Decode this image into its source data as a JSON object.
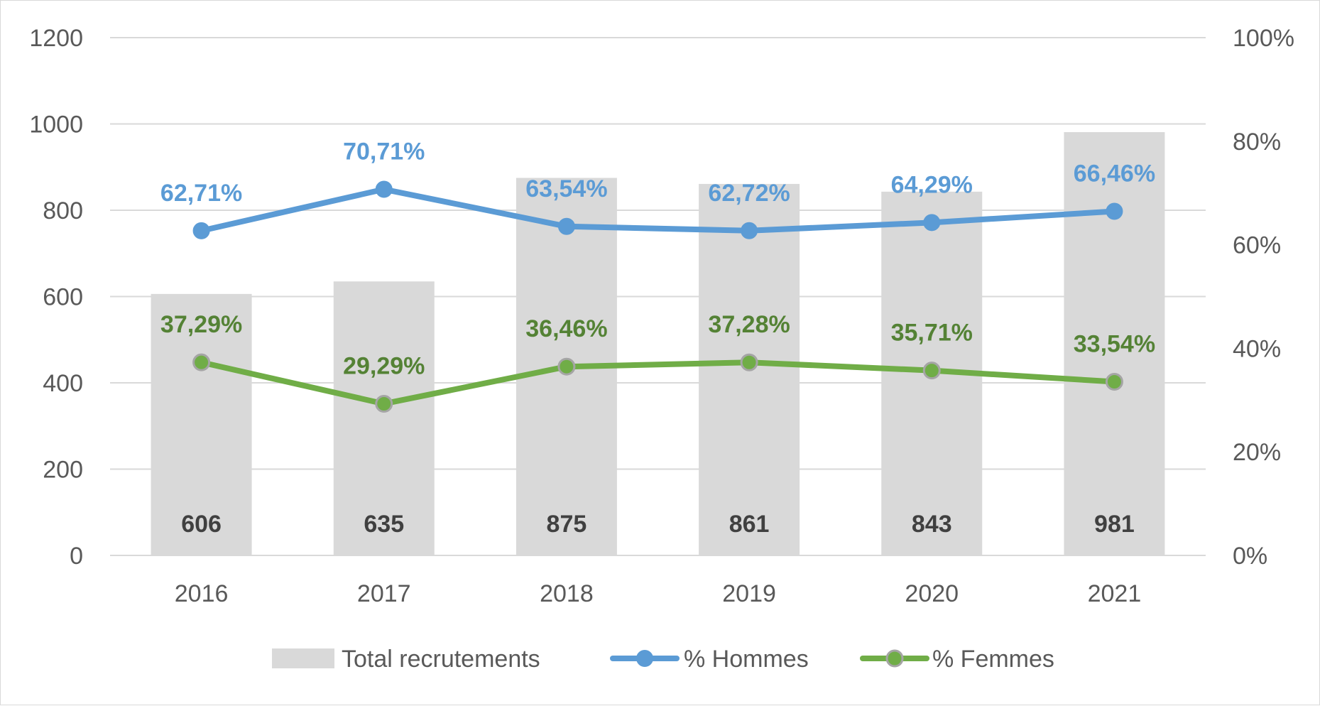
{
  "chart_data": {
    "type": "bar",
    "categories": [
      "2016",
      "2017",
      "2018",
      "2019",
      "2020",
      "2021"
    ],
    "bars": {
      "name": "Total recrutements",
      "values": [
        606,
        635,
        875,
        861,
        843,
        981
      ],
      "labels": [
        "606",
        "635",
        "875",
        "861",
        "843",
        "981"
      ],
      "color": "#d9d9d9"
    },
    "series": [
      {
        "name": "% Hommes",
        "axis": "right",
        "type": "line",
        "values": [
          62.71,
          70.71,
          63.54,
          62.72,
          64.29,
          66.46
        ],
        "labels": [
          "62,71%",
          "70,71%",
          "63,54%",
          "62,72%",
          "64,29%",
          "66,46%"
        ],
        "color": "#5b9bd5",
        "marker_fill": "#5b9bd5"
      },
      {
        "name": "% Femmes",
        "axis": "right",
        "type": "line",
        "values": [
          37.29,
          29.29,
          36.46,
          37.28,
          35.71,
          33.54
        ],
        "labels": [
          "37,29%",
          "29,29%",
          "36,46%",
          "37,28%",
          "35,71%",
          "33,54%"
        ],
        "color": "#70ad47",
        "marker_fill": "#70ad47",
        "marker_stroke": "#a5a5a5",
        "label_color": "#548235"
      }
    ],
    "y_left": {
      "ylim": [
        0,
        1200
      ],
      "ticks": [
        "0",
        "200",
        "400",
        "600",
        "800",
        "1000",
        "1200"
      ]
    },
    "y_right": {
      "ylim": [
        0,
        100
      ],
      "ticks": [
        "0%",
        "20%",
        "40%",
        "60%",
        "80%",
        "100%"
      ]
    },
    "grid": true,
    "legend_position": "bottom",
    "title": "",
    "xlabel": "",
    "ylabel": ""
  }
}
